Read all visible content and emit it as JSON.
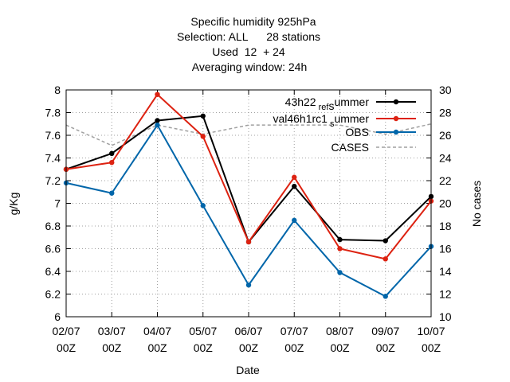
{
  "chart_data": {
    "type": "line",
    "title_lines": [
      "Specific humidity 925hPa",
      "Selection: ALL      28 stations",
      "Used  12  + 24",
      "Averaging window: 24h"
    ],
    "xlabel": "Date",
    "ylabel": "g/Kg",
    "y2label": "No cases",
    "categories": [
      [
        "02/07",
        "00Z"
      ],
      [
        "03/07",
        "00Z"
      ],
      [
        "04/07",
        "00Z"
      ],
      [
        "05/07",
        "00Z"
      ],
      [
        "06/07",
        "00Z"
      ],
      [
        "07/07",
        "00Z"
      ],
      [
        "08/07",
        "00Z"
      ],
      [
        "09/07",
        "00Z"
      ],
      [
        "10/07",
        "00Z"
      ]
    ],
    "ylim": [
      6,
      8
    ],
    "yticks": [
      "6",
      "6.2",
      "6.4",
      "6.6",
      "6.8",
      "7",
      "7.2",
      "7.4",
      "7.6",
      "7.8",
      "8"
    ],
    "y2lim": [
      10,
      30
    ],
    "y2ticks": [
      "10",
      "12",
      "14",
      "16",
      "18",
      "20",
      "22",
      "24",
      "26",
      "28",
      "30"
    ],
    "grid": true,
    "legend_position": "top-right",
    "series": [
      {
        "name": "43h22_ref_summer",
        "legend_main": "43h22",
        "legend_sub": "ref",
        "legend_mid": "s",
        "legend_tail": "ummer",
        "color": "#000000",
        "axis": "left",
        "style": "line-points",
        "values": [
          7.3,
          7.44,
          7.73,
          7.77,
          6.66,
          7.15,
          6.68,
          6.67,
          7.06
        ]
      },
      {
        "name": "val46h1rc1_summer",
        "legend_main": "val46h1rc1",
        "legend_sub": "s",
        "legend_tail": "ummer",
        "color": "#dd2211",
        "axis": "left",
        "style": "line-points",
        "values": [
          7.3,
          7.36,
          7.96,
          7.59,
          6.66,
          7.23,
          6.6,
          6.51,
          7.02
        ]
      },
      {
        "name": "OBS",
        "color": "#0066aa",
        "axis": "left",
        "style": "line-points",
        "values": [
          7.18,
          7.09,
          7.69,
          6.98,
          6.28,
          6.85,
          6.39,
          6.18,
          6.62
        ]
      },
      {
        "name": "CASES",
        "color": "#a0a0a0",
        "axis": "right",
        "style": "dashed",
        "values": [
          26.9,
          25.1,
          26.9,
          26.1,
          26.9,
          26.9,
          26.9,
          26.1,
          27.0
        ]
      }
    ]
  }
}
